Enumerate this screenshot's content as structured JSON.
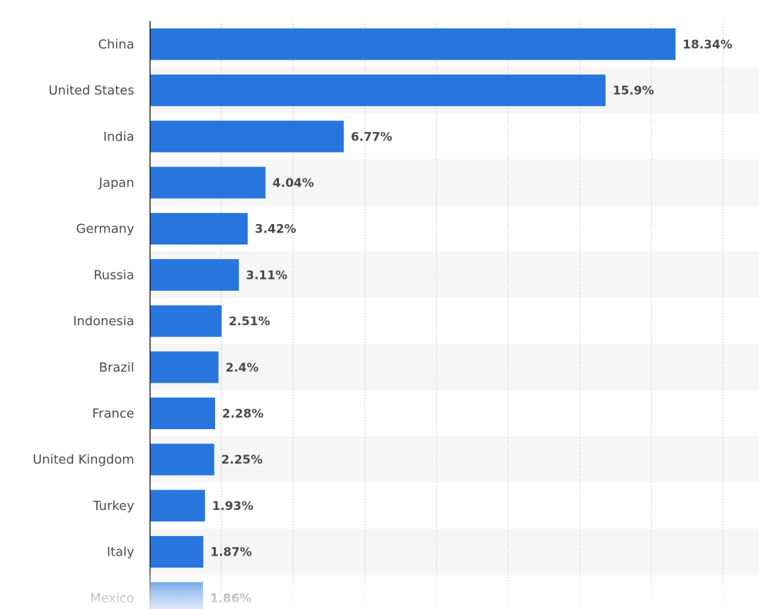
{
  "chart_data": {
    "type": "bar",
    "orientation": "horizontal",
    "categories": [
      "China",
      "United States",
      "India",
      "Japan",
      "Germany",
      "Russia",
      "Indonesia",
      "Brazil",
      "France",
      "United Kingdom",
      "Turkey",
      "Italy",
      "Mexico"
    ],
    "values": [
      18.34,
      15.9,
      6.77,
      4.04,
      3.42,
      3.11,
      2.51,
      2.4,
      2.28,
      2.25,
      1.93,
      1.87,
      1.86
    ],
    "value_labels": [
      "18.34%",
      "15.9%",
      "6.77%",
      "4.04%",
      "3.42%",
      "3.11%",
      "2.51%",
      "2.4%",
      "2.28%",
      "2.25%",
      "1.93%",
      "1.87%",
      "1.86%"
    ],
    "title": "",
    "xlabel": "",
    "ylabel": "",
    "xlim": [
      0,
      21.25
    ],
    "grid": true,
    "legend": "none",
    "colors": {
      "bar": "#2876dd",
      "stripe": "#f6f6f6",
      "grid": "#c8c8c8",
      "axis": "#222222"
    }
  }
}
